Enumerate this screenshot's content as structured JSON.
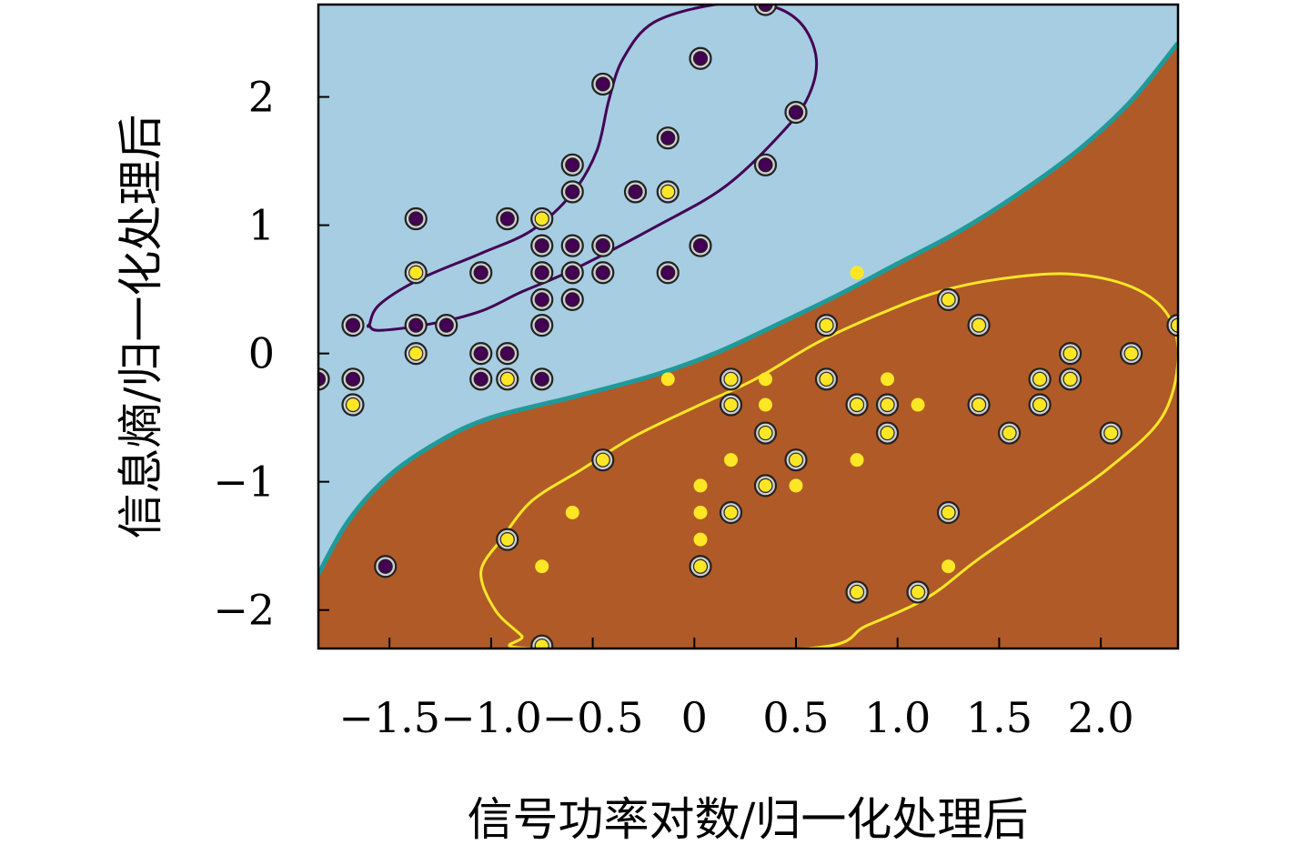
{
  "chart_data": {
    "type": "scatter",
    "title": "",
    "xlabel": "信号功率对数/归一化处理后",
    "ylabel": "信息熵/归一化处理后",
    "xlim": [
      -1.85,
      2.38
    ],
    "ylim": [
      -2.3,
      2.72
    ],
    "xticks": [
      -1.5,
      -1.0,
      -0.5,
      0,
      0.5,
      1.0,
      1.5,
      2.0
    ],
    "xtick_labels": [
      "−1.5",
      "−1.0",
      "−0.5",
      "0",
      "0.5",
      "1.0",
      "1.5",
      "2.0"
    ],
    "yticks": [
      -2,
      -1,
      0,
      1,
      2
    ],
    "ytick_labels": [
      "−2",
      "−1",
      "0",
      "1",
      "2"
    ],
    "grid": false,
    "legend": "none",
    "colors": {
      "region_class0": "#a6cde1",
      "region_class1": "#b05a28",
      "boundary": "#1f9a9a",
      "class0": "#440154",
      "class1": "#fde725",
      "contour0": "#440154",
      "contour1": "#fde725",
      "marker_edge": "#222222"
    },
    "decision_boundary": [
      [
        -1.85,
        -1.72
      ],
      [
        -1.7,
        -1.3
      ],
      [
        -1.5,
        -0.95
      ],
      [
        -1.25,
        -0.68
      ],
      [
        -1.0,
        -0.5
      ],
      [
        -0.6,
        -0.34
      ],
      [
        -0.2,
        -0.17
      ],
      [
        0.1,
        0.0
      ],
      [
        0.4,
        0.22
      ],
      [
        0.7,
        0.45
      ],
      [
        1.0,
        0.7
      ],
      [
        1.3,
        0.95
      ],
      [
        1.6,
        1.25
      ],
      [
        1.9,
        1.6
      ],
      [
        2.15,
        1.97
      ],
      [
        2.38,
        2.42
      ]
    ],
    "contour_class0": [
      [
        -1.6,
        0.22
      ],
      [
        -1.55,
        0.38
      ],
      [
        -1.35,
        0.58
      ],
      [
        -1.05,
        0.78
      ],
      [
        -0.8,
        0.96
      ],
      [
        -0.6,
        1.25
      ],
      [
        -0.48,
        1.58
      ],
      [
        -0.42,
        1.98
      ],
      [
        -0.35,
        2.3
      ],
      [
        -0.2,
        2.58
      ],
      [
        0.1,
        2.72
      ],
      [
        0.35,
        2.72
      ],
      [
        0.52,
        2.58
      ],
      [
        0.6,
        2.3
      ],
      [
        0.56,
        2.0
      ],
      [
        0.43,
        1.72
      ],
      [
        0.15,
        1.3
      ],
      [
        -0.2,
        0.98
      ],
      [
        -0.6,
        0.65
      ],
      [
        -0.85,
        0.48
      ],
      [
        -1.05,
        0.33
      ],
      [
        -1.3,
        0.23
      ],
      [
        -1.55,
        0.18
      ],
      [
        -1.6,
        0.22
      ]
    ],
    "contour_class1": [
      [
        -0.95,
        -1.45
      ],
      [
        -1.05,
        -1.7
      ],
      [
        -0.98,
        -2.0
      ],
      [
        -0.85,
        -2.2
      ],
      [
        -0.8,
        -2.3
      ],
      [
        0.55,
        -2.3
      ],
      [
        0.85,
        -2.12
      ],
      [
        1.15,
        -1.9
      ],
      [
        1.4,
        -1.6
      ],
      [
        1.75,
        -1.22
      ],
      [
        2.05,
        -0.88
      ],
      [
        2.3,
        -0.5
      ],
      [
        2.38,
        -0.05
      ],
      [
        2.33,
        0.3
      ],
      [
        2.15,
        0.52
      ],
      [
        1.85,
        0.62
      ],
      [
        1.5,
        0.58
      ],
      [
        1.2,
        0.48
      ],
      [
        0.9,
        0.3
      ],
      [
        0.6,
        0.08
      ],
      [
        0.3,
        -0.2
      ],
      [
        0.0,
        -0.42
      ],
      [
        -0.3,
        -0.65
      ],
      [
        -0.55,
        -0.9
      ],
      [
        -0.8,
        -1.15
      ],
      [
        -0.95,
        -1.45
      ]
    ],
    "series": [
      {
        "class": 0,
        "marker": "support",
        "points": [
          [
            0.35,
            2.72
          ],
          [
            0.03,
            2.3
          ],
          [
            -0.45,
            2.1
          ],
          [
            -0.13,
            1.68
          ],
          [
            0.5,
            1.88
          ],
          [
            0.35,
            1.47
          ],
          [
            -0.6,
            1.47
          ],
          [
            -0.6,
            1.26
          ],
          [
            -0.29,
            1.26
          ],
          [
            -1.37,
            1.05
          ],
          [
            -0.92,
            1.05
          ],
          [
            -0.75,
            0.84
          ],
          [
            -0.6,
            0.84
          ],
          [
            -0.45,
            0.84
          ],
          [
            0.03,
            0.84
          ],
          [
            -1.05,
            0.63
          ],
          [
            -0.75,
            0.63
          ],
          [
            -0.6,
            0.63
          ],
          [
            -0.45,
            0.63
          ],
          [
            -0.13,
            0.63
          ],
          [
            -0.75,
            0.42
          ],
          [
            -0.6,
            0.42
          ],
          [
            -1.68,
            0.22
          ],
          [
            -1.37,
            0.22
          ],
          [
            -1.22,
            0.22
          ],
          [
            -0.75,
            0.22
          ],
          [
            -1.05,
            0.0
          ],
          [
            -0.92,
            0.0
          ],
          [
            -1.85,
            -0.2
          ],
          [
            -1.68,
            -0.2
          ],
          [
            -1.05,
            -0.2
          ],
          [
            -0.75,
            -0.2
          ],
          [
            -1.52,
            -1.66
          ]
        ]
      },
      {
        "class": 1,
        "marker": "support",
        "points": [
          [
            -0.13,
            1.26
          ],
          [
            -0.75,
            1.05
          ],
          [
            -1.37,
            0.63
          ],
          [
            -1.37,
            0.0
          ],
          [
            -1.68,
            -0.4
          ],
          [
            -0.92,
            -0.2
          ],
          [
            0.18,
            -0.2
          ],
          [
            0.18,
            -0.4
          ],
          [
            0.35,
            -0.62
          ],
          [
            0.5,
            -0.83
          ],
          [
            0.35,
            -1.03
          ],
          [
            0.18,
            -1.24
          ],
          [
            -0.45,
            -0.83
          ],
          [
            -0.92,
            -1.45
          ],
          [
            0.03,
            -1.66
          ],
          [
            -0.75,
            -2.28
          ],
          [
            0.65,
            0.22
          ],
          [
            0.65,
            -0.2
          ],
          [
            0.8,
            -0.4
          ],
          [
            0.95,
            -0.4
          ],
          [
            0.95,
            -0.62
          ],
          [
            1.25,
            0.42
          ],
          [
            1.4,
            0.22
          ],
          [
            1.4,
            -0.4
          ],
          [
            1.55,
            -0.62
          ],
          [
            1.7,
            -0.2
          ],
          [
            1.7,
            -0.4
          ],
          [
            1.85,
            0.0
          ],
          [
            1.85,
            -0.2
          ],
          [
            2.05,
            -0.62
          ],
          [
            2.15,
            0.0
          ],
          [
            2.38,
            0.22
          ],
          [
            1.25,
            -1.24
          ],
          [
            1.1,
            -1.86
          ],
          [
            0.8,
            -1.86
          ]
        ]
      },
      {
        "class": 1,
        "marker": "plain",
        "points": [
          [
            0.8,
            0.63
          ],
          [
            -0.13,
            -0.2
          ],
          [
            0.35,
            -0.2
          ],
          [
            0.35,
            -0.4
          ],
          [
            0.95,
            -0.2
          ],
          [
            1.1,
            -0.4
          ],
          [
            0.18,
            -0.83
          ],
          [
            0.8,
            -0.83
          ],
          [
            0.5,
            -1.03
          ],
          [
            0.03,
            -1.03
          ],
          [
            0.03,
            -1.24
          ],
          [
            -0.6,
            -1.24
          ],
          [
            0.03,
            -1.45
          ],
          [
            -0.75,
            -1.66
          ],
          [
            1.25,
            -1.66
          ]
        ]
      }
    ]
  }
}
